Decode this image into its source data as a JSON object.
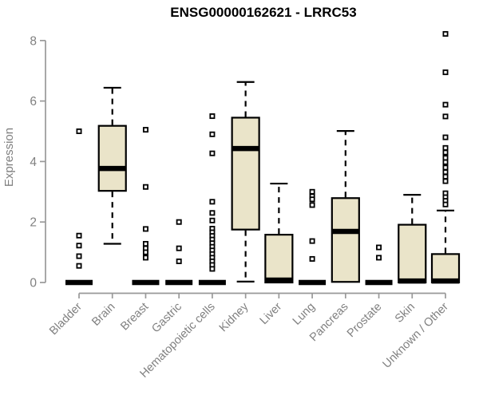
{
  "colors": {
    "box_fill": "#EAE4C9",
    "box_stroke": "#000000",
    "median_color": "#000000",
    "axis_line": "#999999",
    "axis_text": "#808080",
    "title_color": "#000000",
    "background": "#ffffff"
  },
  "chart_data": {
    "type": "boxplot",
    "title": "ENSG00000162621 - LRRC53",
    "xlabel": "",
    "ylabel": "Expression",
    "ylim": [
      0,
      8
    ],
    "yticks": [
      0,
      2,
      4,
      6,
      8
    ],
    "grid": false,
    "legend": "none",
    "categories": [
      "Bladder",
      "Brain",
      "Breast",
      "Gastric",
      "Hematopoietic cells",
      "Kidney",
      "Liver",
      "Lung",
      "Pancreas",
      "Prostate",
      "Skin",
      "Unknown / Other"
    ],
    "series": [
      {
        "category": "Bladder",
        "low": 0,
        "q1": 0,
        "med": 0,
        "q3": 0,
        "high": 0,
        "outliers": [
          5.0,
          1.55,
          1.22,
          0.87,
          0.55
        ]
      },
      {
        "category": "Brain",
        "low": 1.28,
        "q1": 3.03,
        "med": 3.77,
        "q3": 5.18,
        "high": 6.44,
        "outliers": []
      },
      {
        "category": "Breast",
        "low": 0,
        "q1": 0,
        "med": 0,
        "q3": 0,
        "high": 0,
        "outliers": [
          5.05,
          3.16,
          1.77,
          1.28,
          1.13,
          1.0,
          0.82
        ]
      },
      {
        "category": "Gastric",
        "low": 0,
        "q1": 0,
        "med": 0,
        "q3": 0,
        "high": 0,
        "outliers": [
          2.0,
          1.13,
          0.7
        ]
      },
      {
        "category": "Hematopoietic cells",
        "low": 0,
        "q1": 0,
        "med": 0,
        "q3": 0,
        "high": 0,
        "outliers": [
          5.5,
          4.9,
          4.27,
          2.67,
          2.3,
          2.05,
          1.78,
          1.66,
          1.54,
          1.42,
          1.3,
          1.18,
          1.06,
          0.94,
          0.82,
          0.7,
          0.58,
          0.45
        ]
      },
      {
        "category": "Kidney",
        "low": 0.03,
        "q1": 1.75,
        "med": 4.43,
        "q3": 5.45,
        "high": 6.63,
        "outliers": []
      },
      {
        "category": "Liver",
        "low": 0,
        "q1": 0,
        "med": 0.08,
        "q3": 1.58,
        "high": 3.27,
        "outliers": []
      },
      {
        "category": "Lung",
        "low": 0,
        "q1": 0,
        "med": 0,
        "q3": 0,
        "high": 0,
        "outliers": [
          3.0,
          2.85,
          2.75,
          2.56,
          1.37,
          0.78
        ]
      },
      {
        "category": "Pancreas",
        "low": 0,
        "q1": 0.02,
        "med": 1.69,
        "q3": 2.79,
        "high": 5.01,
        "outliers": []
      },
      {
        "category": "Prostate",
        "low": 0,
        "q1": 0,
        "med": 0,
        "q3": 0,
        "high": 0,
        "outliers": [
          1.16,
          0.82
        ]
      },
      {
        "category": "Skin",
        "low": 0,
        "q1": 0,
        "med": 0.05,
        "q3": 1.91,
        "high": 2.9,
        "outliers": []
      },
      {
        "category": "Unknown / Other",
        "low": 0,
        "q1": 0,
        "med": 0.05,
        "q3": 0.94,
        "high": 2.38,
        "outliers": [
          8.22,
          6.95,
          5.88,
          5.49,
          4.8,
          4.45,
          4.3,
          4.12,
          3.98,
          3.8,
          3.65,
          3.5,
          3.35,
          2.95,
          2.82,
          2.7,
          2.58
        ]
      }
    ]
  }
}
